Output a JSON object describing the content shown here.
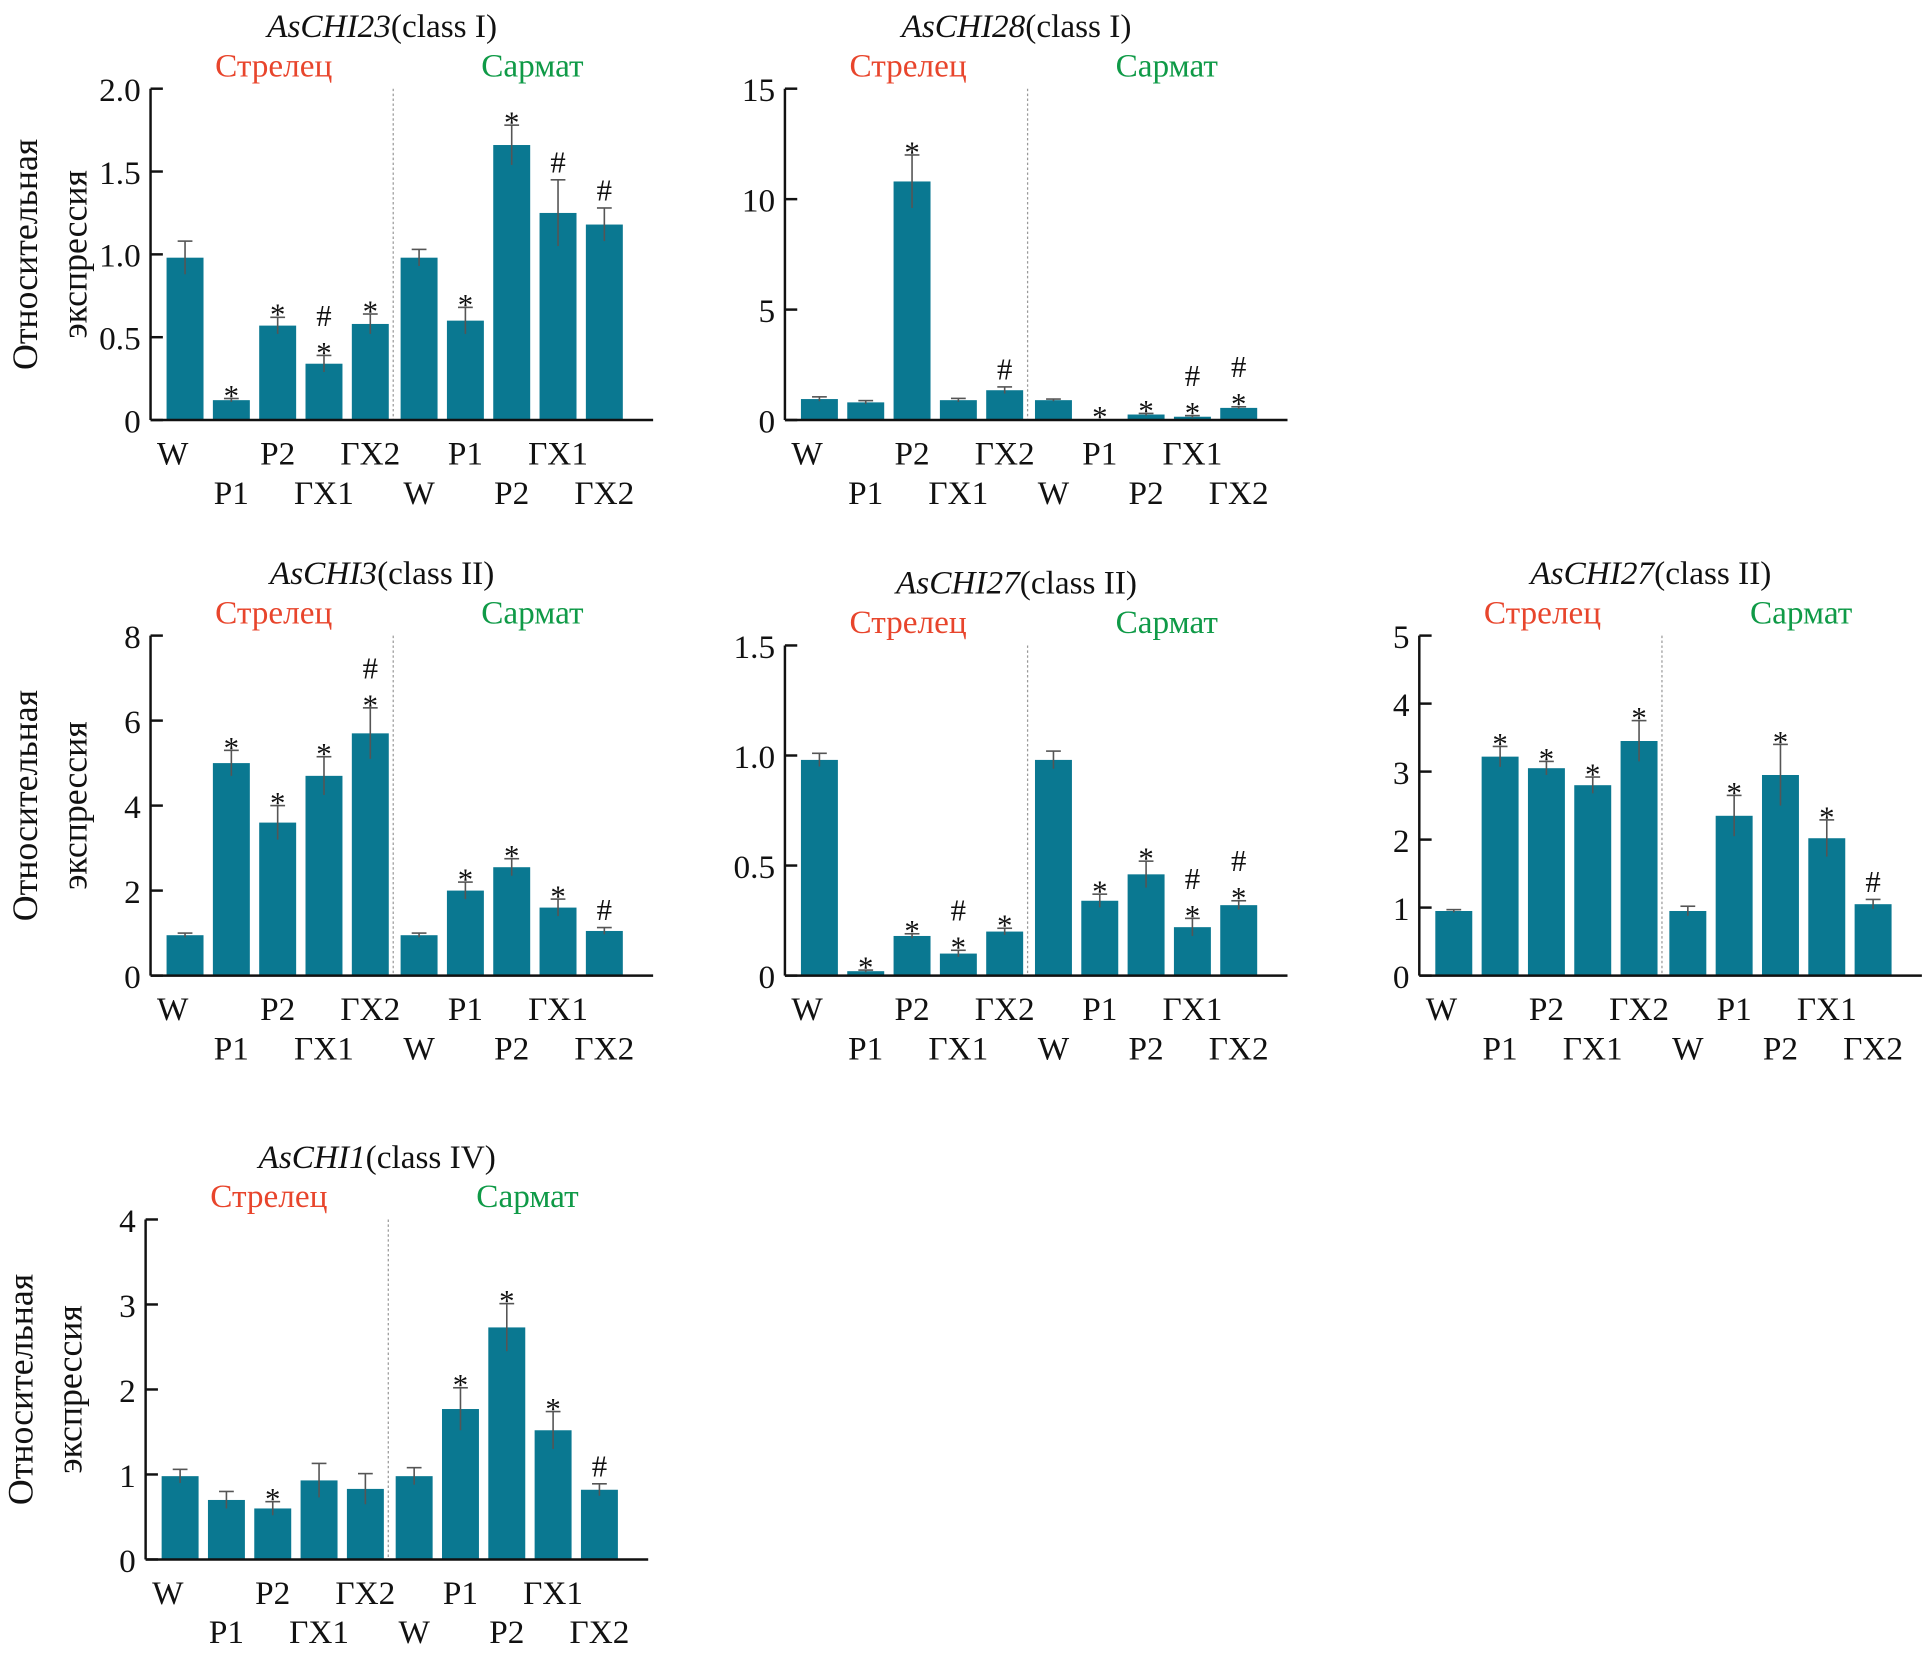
{
  "colors": {
    "bar": "#0a7891",
    "error": "#555555",
    "strelets": "#e8452c",
    "sarmat": "#0f9a47",
    "divider": "#999999"
  },
  "y_axis_label": [
    "Относительная",
    "экспрессия"
  ],
  "chart_data": [
    {
      "type": "bar",
      "title_gene": "AsCHI23",
      "title_class": "(class I)",
      "groups": [
        "Стрелец",
        "Сармат"
      ],
      "categories": [
        "W",
        "P1",
        "P2",
        "ГХ1",
        "ГХ2",
        "W",
        "P1",
        "P2",
        "ГХ1",
        "ГХ2"
      ],
      "values": [
        0.98,
        0.12,
        0.57,
        0.34,
        0.58,
        0.98,
        0.6,
        1.66,
        1.25,
        1.18
      ],
      "errors": [
        0.1,
        0.01,
        0.05,
        0.05,
        0.06,
        0.05,
        0.08,
        0.12,
        0.2,
        0.1
      ],
      "marks": [
        "",
        "*",
        "*",
        "*#",
        "*",
        "",
        "*",
        "*",
        "#",
        "#"
      ],
      "ylim": [
        0,
        2.0
      ],
      "yticks": [
        "0",
        "0.5",
        "1.0",
        "1.5",
        "2.0"
      ],
      "show_ylabel": true
    },
    {
      "type": "bar",
      "title_gene": "AsCHI28",
      "title_class": "(class I)",
      "groups": [
        "Стрелец",
        "Сармат"
      ],
      "categories": [
        "W",
        "P1",
        "P2",
        "ГХ1",
        "ГХ2",
        "W",
        "P1",
        "P2",
        "ГХ1",
        "ГХ2"
      ],
      "values": [
        0.95,
        0.8,
        10.8,
        0.9,
        1.35,
        0.9,
        0.02,
        0.25,
        0.15,
        0.55
      ],
      "errors": [
        0.1,
        0.08,
        1.2,
        0.08,
        0.15,
        0.05,
        0.0,
        0.05,
        0.05,
        0.05
      ],
      "marks": [
        "",
        "",
        "*",
        "",
        "#",
        "",
        "*",
        "*",
        "*#",
        "*#"
      ],
      "ylim": [
        0,
        15
      ],
      "yticks": [
        "0",
        "5",
        "10",
        "15"
      ],
      "show_ylabel": false
    },
    {
      "type": "bar",
      "title_gene": "AsCHI3",
      "title_class": "(class II)",
      "groups": [
        "Стрелец",
        "Сармат"
      ],
      "categories": [
        "W",
        "P1",
        "P2",
        "ГХ1",
        "ГХ2",
        "W",
        "P1",
        "P2",
        "ГХ1",
        "ГХ2"
      ],
      "values": [
        0.95,
        5.0,
        3.6,
        4.7,
        5.7,
        0.95,
        2.0,
        2.55,
        1.6,
        1.05
      ],
      "errors": [
        0.05,
        0.3,
        0.4,
        0.45,
        0.6,
        0.05,
        0.2,
        0.2,
        0.2,
        0.08
      ],
      "marks": [
        "",
        "*",
        "*",
        "*",
        "*#",
        "",
        "*",
        "*",
        "*",
        "#"
      ],
      "ylim": [
        0,
        8
      ],
      "yticks": [
        "0",
        "2",
        "4",
        "6",
        "8"
      ],
      "show_ylabel": true
    },
    {
      "type": "bar",
      "title_gene": "AsCHI27",
      "title_class": "(class II)",
      "groups": [
        "Стрелец",
        "Сармат"
      ],
      "categories": [
        "W",
        "P1",
        "P2",
        "ГХ1",
        "ГХ2",
        "W",
        "P1",
        "P2",
        "ГХ1",
        "ГХ2"
      ],
      "values": [
        0.98,
        0.02,
        0.18,
        0.1,
        0.2,
        0.98,
        0.34,
        0.46,
        0.22,
        0.32
      ],
      "errors": [
        0.03,
        0.005,
        0.01,
        0.015,
        0.015,
        0.04,
        0.03,
        0.06,
        0.04,
        0.02
      ],
      "marks": [
        "",
        "*",
        "*",
        "*#",
        "*",
        "",
        "*",
        "*",
        "*#",
        "*#"
      ],
      "ylim": [
        0,
        1.5
      ],
      "yticks": [
        "0",
        "0.5",
        "1.0",
        "1.5"
      ],
      "show_ylabel": false
    },
    {
      "type": "bar",
      "title_gene": "AsCHI27",
      "title_class": "(class II)",
      "groups": [
        "Стрелец",
        "Сармат"
      ],
      "categories": [
        "W",
        "P1",
        "P2",
        "ГХ1",
        "ГХ2",
        "W",
        "P1",
        "P2",
        "ГХ1",
        "ГХ2"
      ],
      "values": [
        0.95,
        3.22,
        3.05,
        2.8,
        3.45,
        0.95,
        2.35,
        2.95,
        2.02,
        1.05
      ],
      "errors": [
        0.02,
        0.15,
        0.1,
        0.12,
        0.3,
        0.07,
        0.3,
        0.45,
        0.27,
        0.07
      ],
      "marks": [
        "",
        "*",
        "*",
        "*",
        "*",
        "",
        "*",
        "*",
        "*",
        "#"
      ],
      "ylim": [
        0,
        5
      ],
      "yticks": [
        "0",
        "1",
        "2",
        "3",
        "4",
        "5"
      ],
      "show_ylabel": false
    },
    {
      "type": "bar",
      "title_gene": "AsCHI1",
      "title_class": "(class IV)",
      "groups": [
        "Стрелец",
        "Сармат"
      ],
      "categories": [
        "W",
        "P1",
        "P2",
        "ГХ1",
        "ГХ2",
        "W",
        "P1",
        "P2",
        "ГХ1",
        "ГХ2"
      ],
      "values": [
        0.98,
        0.7,
        0.6,
        0.93,
        0.83,
        0.98,
        1.77,
        2.73,
        1.52,
        0.82
      ],
      "errors": [
        0.08,
        0.1,
        0.08,
        0.2,
        0.18,
        0.1,
        0.25,
        0.28,
        0.22,
        0.07
      ],
      "marks": [
        "",
        "",
        "*",
        "",
        "",
        "",
        "*",
        "*",
        "*",
        "#"
      ],
      "ylim": [
        0,
        4
      ],
      "yticks": [
        "0",
        "1",
        "2",
        "3",
        "4"
      ],
      "show_ylabel": true
    }
  ]
}
